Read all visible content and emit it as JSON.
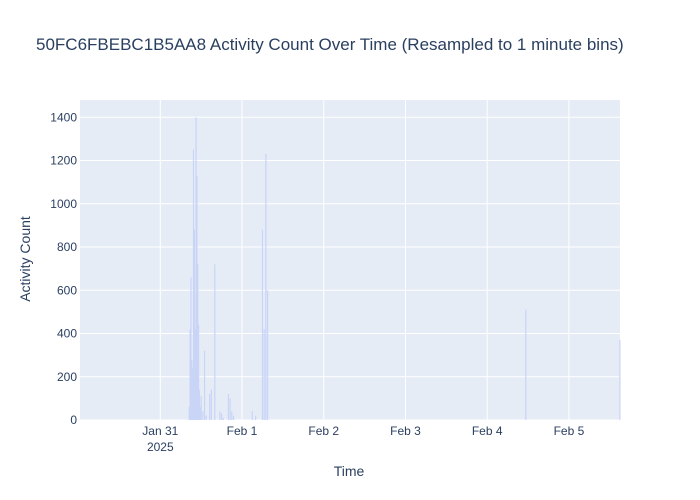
{
  "chart_data": {
    "type": "bar",
    "title": "50FC6FBEBC1B5AA8 Activity Count Over Time (Resampled to 1 minute bins)",
    "xlabel": "Time",
    "ylabel": "Activity Count",
    "ylim": [
      0,
      1480
    ],
    "xlim": [
      "2025-01-30T00:25",
      "2025-02-05T15:00"
    ],
    "x_tick_labels": [
      "Jan 31\n2025",
      "Feb 1",
      "Feb 2",
      "Feb 3",
      "Feb 4",
      "Feb 5"
    ],
    "x_ticks": [
      "2025-01-31T00:00",
      "2025-02-01T00:00",
      "2025-02-02T00:00",
      "2025-02-03T00:00",
      "2025-02-04T00:00",
      "2025-02-05T00:00"
    ],
    "y_ticks": [
      0,
      200,
      400,
      600,
      800,
      1000,
      1200,
      1400
    ],
    "grid": true,
    "colors": {
      "bar": "#c9d4f7",
      "plot_bg": "#e5ecf6",
      "grid": "#ffffff",
      "text": "#2a3f5f"
    },
    "series": [
      {
        "x": [
          "2025-01-31T08:30",
          "2025-01-31T08:45",
          "2025-01-31T09:00",
          "2025-01-31T09:15",
          "2025-01-31T09:30",
          "2025-01-31T09:45",
          "2025-01-31T10:00",
          "2025-01-31T10:15",
          "2025-01-31T10:30",
          "2025-01-31T10:45",
          "2025-01-31T11:00",
          "2025-01-31T11:15",
          "2025-01-31T11:30",
          "2025-01-31T11:45",
          "2025-01-31T12:00",
          "2025-01-31T12:30",
          "2025-01-31T13:00",
          "2025-01-31T13:30",
          "2025-01-31T14:30",
          "2025-01-31T15:00",
          "2025-01-31T16:00",
          "2025-01-31T17:30",
          "2025-01-31T18:00",
          "2025-01-31T18:30",
          "2025-01-31T20:00",
          "2025-01-31T20:30",
          "2025-01-31T21:00",
          "2025-01-31T21:30",
          "2025-02-01T03:00",
          "2025-02-01T04:00",
          "2025-02-01T06:00",
          "2025-02-01T06:30",
          "2025-02-01T07:00",
          "2025-02-01T07:30",
          "2025-02-04T11:20",
          "2025-02-05T14:58"
        ],
        "values": [
          60,
          420,
          660,
          280,
          240,
          1250,
          880,
          420,
          1400,
          1130,
          720,
          440,
          140,
          60,
          110,
          40,
          320,
          20,
          120,
          140,
          720,
          40,
          30,
          10,
          120,
          100,
          40,
          20,
          40,
          20,
          880,
          420,
          1230,
          600,
          510,
          370
        ]
      }
    ]
  }
}
